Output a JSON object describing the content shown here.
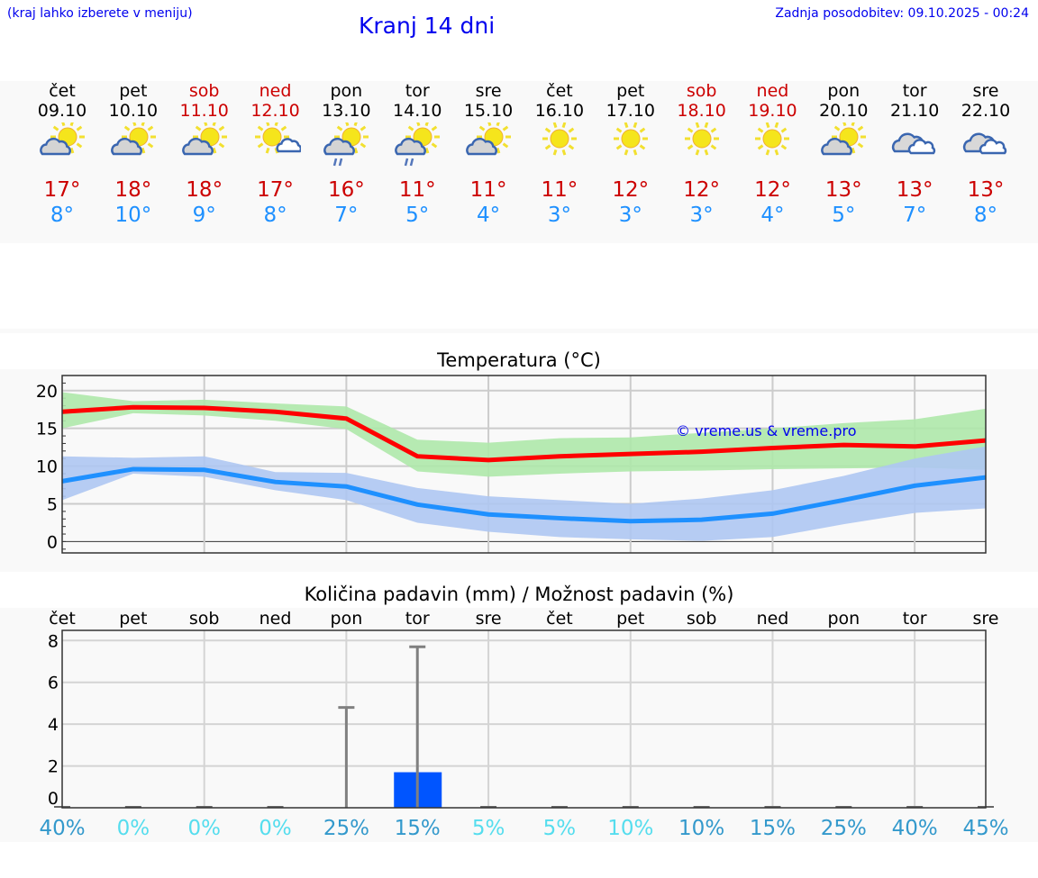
{
  "header": {
    "hint": "(kraj lahko izberete v meniju)",
    "title": "Kranj 14 dni",
    "updated": "Zadnja posodobitev: 09.10.2025 - 00:24"
  },
  "days": [
    {
      "name": "čet",
      "date": "09.10",
      "weekend": false,
      "icon": "sun-cloud",
      "hi": "17°",
      "lo": "8°"
    },
    {
      "name": "pet",
      "date": "10.10",
      "weekend": false,
      "icon": "sun-cloud",
      "hi": "18°",
      "lo": "10°"
    },
    {
      "name": "sob",
      "date": "11.10",
      "weekend": true,
      "icon": "sun-cloud",
      "hi": "18°",
      "lo": "9°"
    },
    {
      "name": "ned",
      "date": "12.10",
      "weekend": true,
      "icon": "sun-small-cloud",
      "hi": "17°",
      "lo": "8°"
    },
    {
      "name": "pon",
      "date": "13.10",
      "weekend": false,
      "icon": "sun-cloud-rain",
      "hi": "16°",
      "lo": "7°"
    },
    {
      "name": "tor",
      "date": "14.10",
      "weekend": false,
      "icon": "sun-cloud-rain",
      "hi": "11°",
      "lo": "5°"
    },
    {
      "name": "sre",
      "date": "15.10",
      "weekend": false,
      "icon": "sun-cloud",
      "hi": "11°",
      "lo": "4°"
    },
    {
      "name": "čet",
      "date": "16.10",
      "weekend": false,
      "icon": "sun",
      "hi": "11°",
      "lo": "3°"
    },
    {
      "name": "pet",
      "date": "17.10",
      "weekend": false,
      "icon": "sun",
      "hi": "12°",
      "lo": "3°"
    },
    {
      "name": "sob",
      "date": "18.10",
      "weekend": true,
      "icon": "sun",
      "hi": "12°",
      "lo": "3°"
    },
    {
      "name": "ned",
      "date": "19.10",
      "weekend": true,
      "icon": "sun",
      "hi": "12°",
      "lo": "4°"
    },
    {
      "name": "pon",
      "date": "20.10",
      "weekend": false,
      "icon": "sun-cloud",
      "hi": "13°",
      "lo": "5°"
    },
    {
      "name": "tor",
      "date": "21.10",
      "weekend": false,
      "icon": "cloud",
      "hi": "13°",
      "lo": "7°"
    },
    {
      "name": "sre",
      "date": "22.10",
      "weekend": false,
      "icon": "cloud",
      "hi": "13°",
      "lo": "8°"
    }
  ],
  "chart_data": [
    {
      "type": "line",
      "title": "Temperatura (°C)",
      "watermark": "© vreme.us & vreme.pro",
      "ylim": [
        -1.5,
        22
      ],
      "yticks": [
        0,
        5,
        10,
        15,
        20
      ],
      "grid": true,
      "x": [
        "09.10",
        "10.10",
        "11.10",
        "12.10",
        "13.10",
        "14.10",
        "15.10",
        "16.10",
        "17.10",
        "18.10",
        "19.10",
        "20.10",
        "21.10",
        "22.10"
      ],
      "series": [
        {
          "name": "max",
          "color": "#ff0000",
          "values": [
            17.2,
            17.8,
            17.7,
            17.2,
            16.3,
            11.3,
            10.8,
            11.3,
            11.6,
            11.9,
            12.4,
            12.8,
            12.6,
            13.4
          ],
          "band_color": "#aee8aa",
          "band_upper": [
            19.8,
            18.6,
            18.8,
            18.3,
            17.9,
            13.5,
            13.1,
            13.7,
            13.8,
            14.4,
            15.0,
            15.7,
            16.2,
            17.6
          ],
          "band_lower": [
            15.0,
            17.0,
            16.7,
            16.0,
            14.9,
            9.3,
            8.6,
            9.0,
            9.3,
            9.4,
            9.6,
            9.7,
            9.8,
            9.5
          ]
        },
        {
          "name": "min",
          "color": "#1e90ff",
          "values": [
            8.0,
            9.6,
            9.5,
            7.9,
            7.3,
            4.9,
            3.6,
            3.1,
            2.7,
            2.9,
            3.7,
            5.5,
            7.4,
            8.5
          ],
          "band_color": "#aec6f2",
          "band_upper": [
            11.3,
            11.1,
            11.3,
            9.2,
            9.1,
            7.1,
            6.0,
            5.5,
            5.0,
            5.7,
            6.8,
            8.7,
            11.0,
            12.6
          ],
          "band_lower": [
            5.5,
            9.0,
            8.6,
            6.8,
            5.5,
            2.5,
            1.3,
            0.6,
            0.3,
            0.1,
            0.6,
            2.3,
            3.8,
            4.4
          ]
        }
      ]
    },
    {
      "type": "bar",
      "title": "Količina padavin (mm) / Možnost padavin (%)",
      "ylim": [
        -0.5,
        8.3
      ],
      "yticks": [
        0,
        2,
        4,
        6,
        8
      ],
      "grid": true,
      "categories": [
        "čet",
        "pet",
        "sob",
        "ned",
        "pon",
        "tor",
        "sre",
        "čet",
        "pet",
        "sob",
        "ned",
        "pon",
        "tor",
        "sre"
      ],
      "values": [
        0,
        0,
        0,
        0,
        0,
        1.7,
        0,
        0,
        0,
        0,
        0,
        0,
        0,
        0
      ],
      "error_max": [
        0,
        0,
        0,
        0,
        4.8,
        7.7,
        0,
        0,
        0,
        0,
        0,
        0,
        0,
        0
      ],
      "bar_color": "#0055ff",
      "probability": [
        "40%",
        "0%",
        "0%",
        "0%",
        "25%",
        "15%",
        "5%",
        "5%",
        "10%",
        "10%",
        "15%",
        "25%",
        "40%",
        "45%"
      ],
      "probability_colors": [
        "#3399cc",
        "#55ddee",
        "#55ddee",
        "#55ddee",
        "#3399cc",
        "#3399cc",
        "#55ddee",
        "#55ddee",
        "#55ddee",
        "#3399cc",
        "#3399cc",
        "#3399cc",
        "#3399cc",
        "#3399cc"
      ]
    }
  ]
}
